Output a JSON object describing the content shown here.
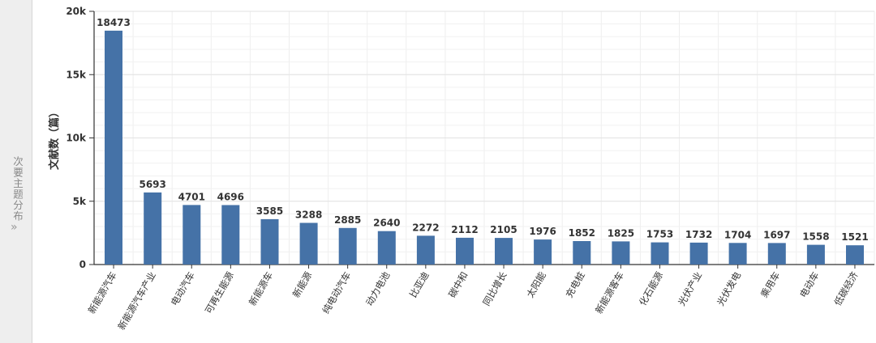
{
  "side_tab": {
    "label": "次要主题分布",
    "arrow_icon": "double-chevron-right-icon"
  },
  "chart_data": {
    "type": "bar",
    "categories": [
      "新能源汽车",
      "新能源汽车产业",
      "电动汽车",
      "可再生能源",
      "新能源车",
      "新能源",
      "纯电动汽车",
      "动力电池",
      "比亚迪",
      "碳中和",
      "同比增长",
      "太阳能",
      "充电桩",
      "新能源客车",
      "化石能源",
      "光伏产业",
      "光伏发电",
      "乘用车",
      "电动车",
      "低碳经济"
    ],
    "values": [
      18473,
      5693,
      4701,
      4696,
      3585,
      3288,
      2885,
      2640,
      2272,
      2112,
      2105,
      1976,
      1852,
      1825,
      1753,
      1732,
      1704,
      1697,
      1558,
      1521
    ],
    "ylabel": "文献数（篇）",
    "ylim": [
      0,
      20000
    ],
    "y_ticks": [
      0,
      5000,
      10000,
      15000,
      20000
    ],
    "y_tick_labels": [
      "0",
      "5k",
      "10k",
      "15k",
      "20k"
    ],
    "grid": true,
    "bar_color": "#4572a7"
  }
}
